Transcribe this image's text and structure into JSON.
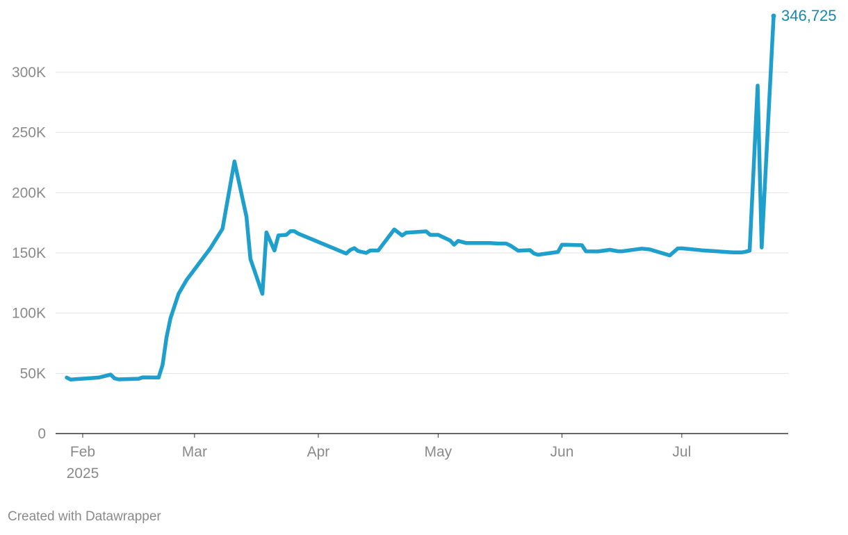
{
  "chart_data": {
    "type": "line",
    "title": "",
    "xlabel": "",
    "ylabel": "",
    "ylim": [
      0,
      346725
    ],
    "xlim": [
      "2025-01-28",
      "2025-07-24"
    ],
    "y_ticks": [
      0,
      50000,
      100000,
      150000,
      200000,
      250000,
      300000
    ],
    "y_tick_labels": [
      "0",
      "50K",
      "100K",
      "150K",
      "200K",
      "250K",
      "300K"
    ],
    "x_ticks": [
      {
        "date": "2025-02-01",
        "label": "Feb",
        "sublabel": "2025"
      },
      {
        "date": "2025-03-01",
        "label": "Mar",
        "sublabel": ""
      },
      {
        "date": "2025-04-01",
        "label": "Apr",
        "sublabel": ""
      },
      {
        "date": "2025-05-01",
        "label": "May",
        "sublabel": ""
      },
      {
        "date": "2025-06-01",
        "label": "Jun",
        "sublabel": ""
      },
      {
        "date": "2025-07-01",
        "label": "Jul",
        "sublabel": ""
      }
    ],
    "grid": true,
    "line_color": "#1fa0cc",
    "end_label_color": "#1588ad",
    "end_label": "346,725",
    "series": [
      {
        "name": "",
        "x": [
          "2025-01-28",
          "2025-01-29",
          "2025-02-05",
          "2025-02-08",
          "2025-02-09",
          "2025-02-10",
          "2025-02-15",
          "2025-02-16",
          "2025-02-20",
          "2025-02-21",
          "2025-02-22",
          "2025-02-23",
          "2025-02-25",
          "2025-02-27",
          "2025-03-05",
          "2025-03-08",
          "2025-03-11",
          "2025-03-14",
          "2025-03-15",
          "2025-03-18",
          "2025-03-19",
          "2025-03-21",
          "2025-03-22",
          "2025-03-24",
          "2025-03-25",
          "2025-03-26",
          "2025-03-27",
          "2025-04-08",
          "2025-04-09",
          "2025-04-10",
          "2025-04-11",
          "2025-04-13",
          "2025-04-14",
          "2025-04-16",
          "2025-04-20",
          "2025-04-22",
          "2025-04-23",
          "2025-04-28",
          "2025-04-29",
          "2025-05-01",
          "2025-05-04",
          "2025-05-05",
          "2025-05-06",
          "2025-05-08",
          "2025-05-14",
          "2025-05-16",
          "2025-05-18",
          "2025-05-19",
          "2025-05-21",
          "2025-05-24",
          "2025-05-25",
          "2025-05-26",
          "2025-05-31",
          "2025-06-01",
          "2025-06-02",
          "2025-06-04",
          "2025-06-06",
          "2025-06-07",
          "2025-06-10",
          "2025-06-13",
          "2025-06-15",
          "2025-06-16",
          "2025-06-21",
          "2025-06-23",
          "2025-06-28",
          "2025-06-30",
          "2025-07-01",
          "2025-07-06",
          "2025-07-13",
          "2025-07-14",
          "2025-07-15",
          "2025-07-16",
          "2025-07-17",
          "2025-07-18",
          "2025-07-20",
          "2025-07-21",
          "2025-07-24"
        ],
        "values": [
          46500,
          44800,
          46500,
          49000,
          45800,
          45000,
          45500,
          46700,
          46500,
          57000,
          80000,
          96000,
          116000,
          127500,
          154000,
          170000,
          226000,
          180000,
          145000,
          116000,
          167000,
          152000,
          164500,
          165000,
          168000,
          168000,
          166000,
          149500,
          152500,
          154000,
          151500,
          150000,
          152000,
          152000,
          169500,
          164500,
          166800,
          167900,
          165000,
          165000,
          160300,
          156800,
          160000,
          158200,
          158200,
          157800,
          157800,
          156300,
          151900,
          152300,
          149500,
          148500,
          150800,
          156800,
          156800,
          156600,
          156400,
          151300,
          151200,
          152600,
          151400,
          151300,
          153600,
          152900,
          147900,
          153700,
          153800,
          152200,
          150600,
          150400,
          150400,
          150400,
          151000,
          151900,
          289000,
          154500,
          346725
        ]
      }
    ]
  },
  "credit": "Created with Datawrapper"
}
